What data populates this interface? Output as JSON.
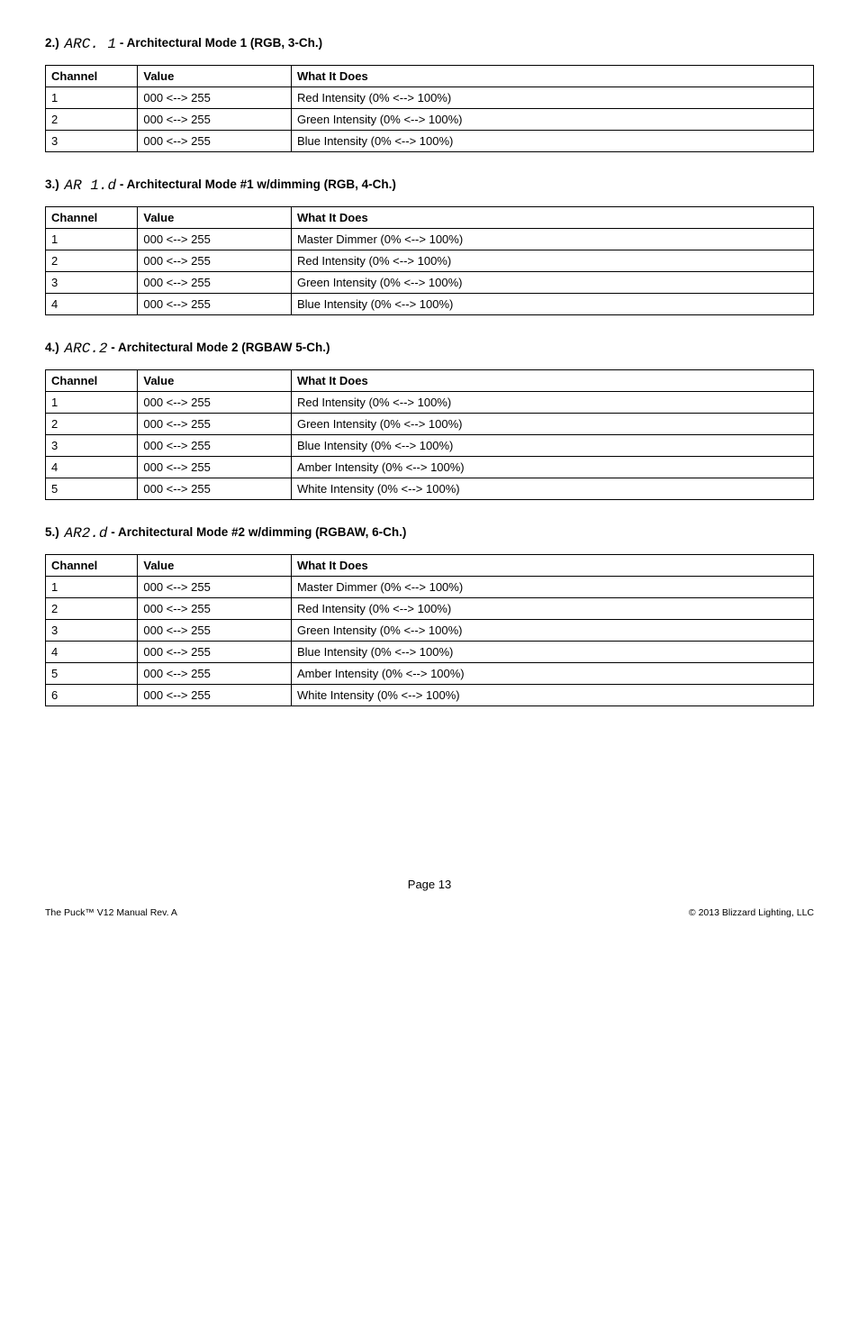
{
  "sections": [
    {
      "number": "2.)",
      "code": "ARC. 1",
      "title": " -  Architectural Mode 1 (RGB, 3-Ch.)",
      "rows": [
        {
          "ch": "1",
          "val": "000 <--> 255",
          "desc": "Red Intensity (0% <--> 100%)"
        },
        {
          "ch": "2",
          "val": "000 <--> 255",
          "desc": "Green Intensity (0% <--> 100%)"
        },
        {
          "ch": "3",
          "val": "000 <--> 255",
          "desc": "Blue Intensity (0% <--> 100%)"
        }
      ]
    },
    {
      "number": "3.)",
      "code": "AR 1.d",
      "title": " -  Architectural Mode #1 w/dimming (RGB, 4-Ch.)",
      "rows": [
        {
          "ch": "1",
          "val": "000 <--> 255",
          "desc": "Master Dimmer (0% <--> 100%)"
        },
        {
          "ch": "2",
          "val": "000 <--> 255",
          "desc": "Red Intensity (0% <--> 100%)"
        },
        {
          "ch": "3",
          "val": "000 <--> 255",
          "desc": "Green Intensity (0% <--> 100%)"
        },
        {
          "ch": "4",
          "val": "000 <--> 255",
          "desc": "Blue Intensity (0% <--> 100%)"
        }
      ]
    },
    {
      "number": "4.)",
      "code": "ARC.2",
      "title": " -  Architectural Mode 2 (RGBAW 5-Ch.)",
      "rows": [
        {
          "ch": "1",
          "val": "000 <--> 255",
          "desc": "Red Intensity (0% <--> 100%)"
        },
        {
          "ch": "2",
          "val": "000 <--> 255",
          "desc": "Green Intensity (0% <--> 100%)"
        },
        {
          "ch": "3",
          "val": "000 <--> 255",
          "desc": "Blue Intensity (0% <--> 100%)"
        },
        {
          "ch": "4",
          "val": "000 <--> 255",
          "desc": "Amber Intensity (0% <--> 100%)"
        },
        {
          "ch": "5",
          "val": "000 <--> 255",
          "desc": "White Intensity (0% <--> 100%)"
        }
      ]
    },
    {
      "number": "5.)",
      "code": "AR2.d",
      "title": " -  Architectural Mode #2 w/dimming (RGBAW, 6-Ch.)",
      "rows": [
        {
          "ch": "1",
          "val": "000 <--> 255",
          "desc": "Master Dimmer (0% <--> 100%)"
        },
        {
          "ch": "2",
          "val": "000 <--> 255",
          "desc": "Red Intensity (0% <--> 100%)"
        },
        {
          "ch": "3",
          "val": "000 <--> 255",
          "desc": "Green Intensity (0% <--> 100%)"
        },
        {
          "ch": "4",
          "val": "000 <--> 255",
          "desc": "Blue Intensity (0% <--> 100%)"
        },
        {
          "ch": "5",
          "val": "000 <--> 255",
          "desc": "Amber Intensity (0% <--> 100%)"
        },
        {
          "ch": "6",
          "val": "000 <--> 255",
          "desc": "White Intensity (0% <--> 100%)"
        }
      ]
    }
  ],
  "table_headers": {
    "ch": "Channel",
    "val": "Value",
    "desc": "What It Does"
  },
  "page_label": "Page 13",
  "footer_left": "The Puck™ V12 Manual Rev. A",
  "footer_right": "© 2013 Blizzard Lighting, LLC"
}
